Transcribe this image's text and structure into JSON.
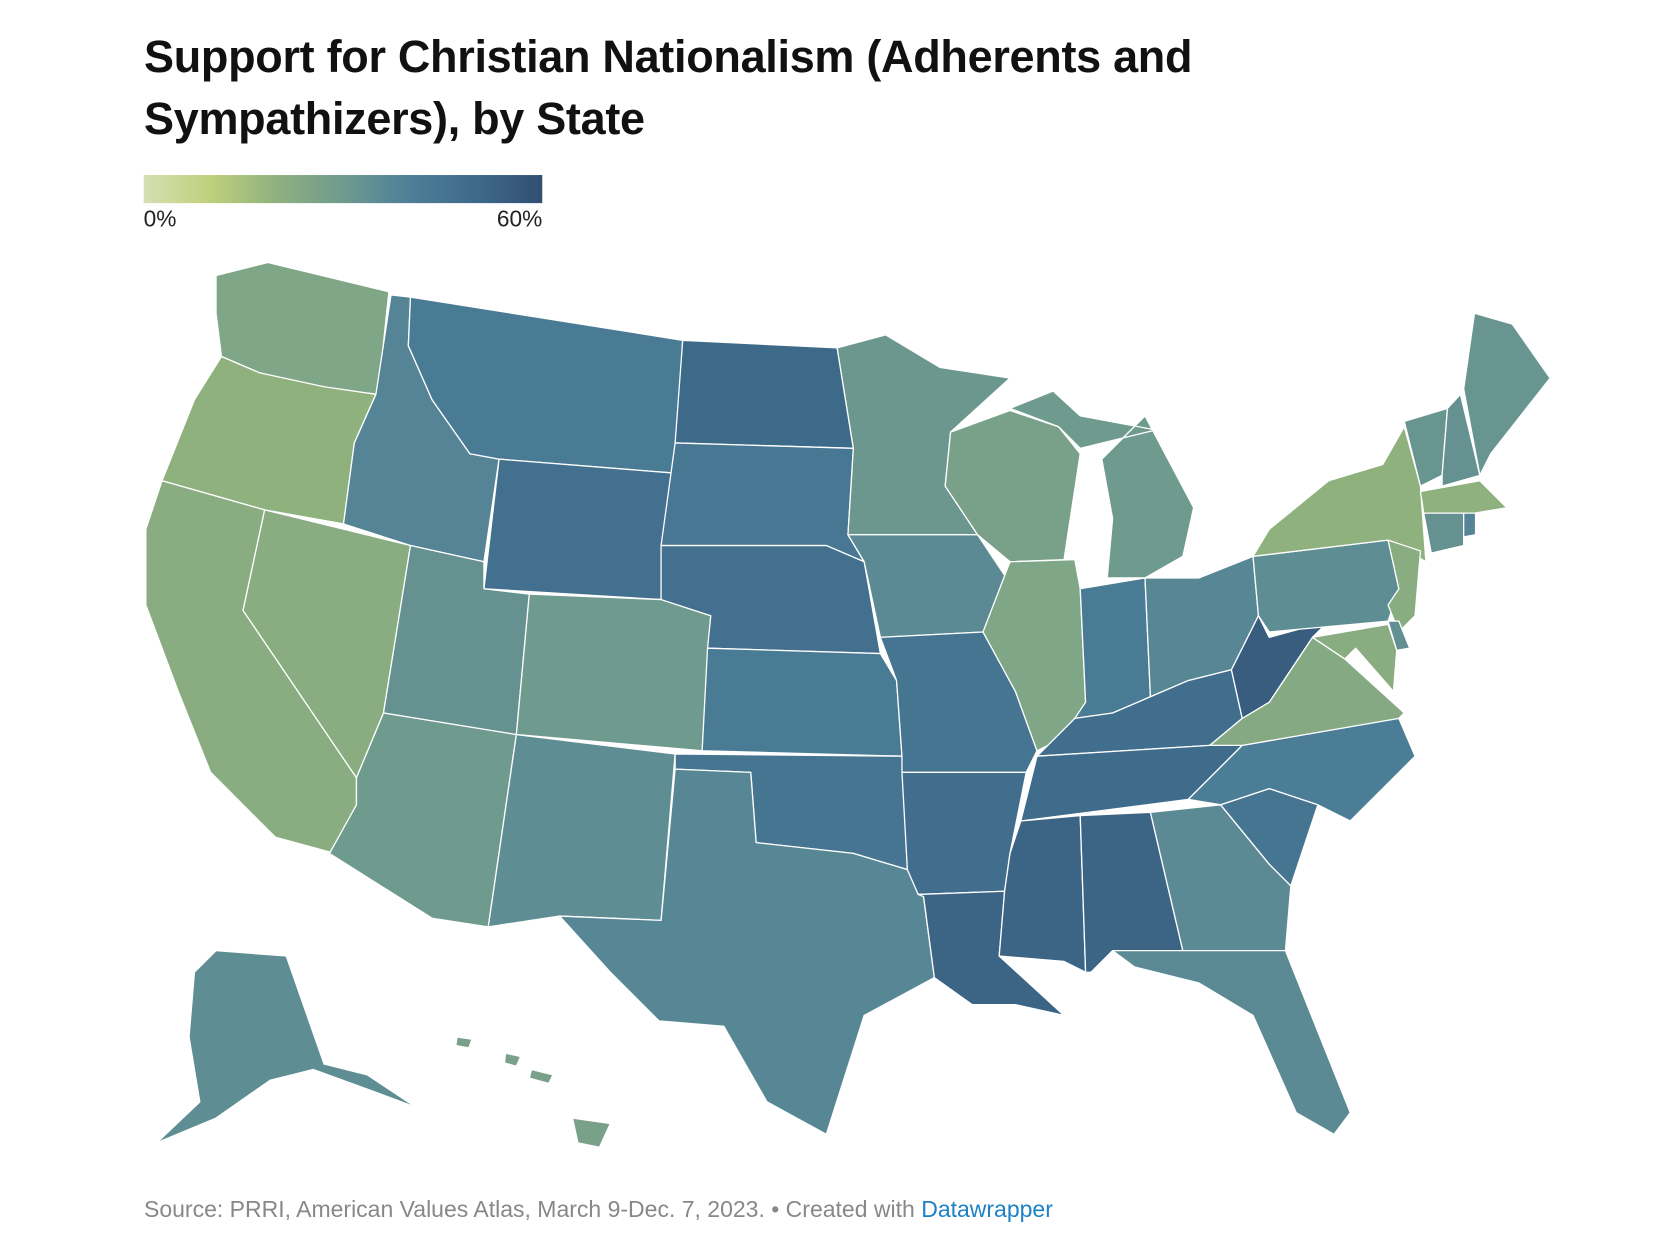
{
  "chart_data": {
    "type": "choropleth",
    "title": "Support for Christian Nationalism (Adherents and Sympathizers), by State",
    "source": "Source: PRRI, American Values Atlas, March 9-Dec. 7, 2023. • Created with",
    "credit": "Datawrapper",
    "colorscale": [
      "#d6dfb3",
      "#bfd07c",
      "#8fb17e",
      "#6f9a8e",
      "#4d7f98",
      "#3e6a8a",
      "#324f72"
    ],
    "clim": [
      0,
      60
    ],
    "legend_ticks": [
      {
        "value": 0,
        "label": "0%"
      },
      {
        "value": 60,
        "label": "60%"
      }
    ],
    "values": [
      25,
      20,
      22,
      22,
      38,
      42,
      47,
      33,
      30,
      30,
      35,
      50,
      44,
      47,
      42,
      45,
      37,
      31,
      36,
      45,
      48,
      52,
      27,
      25,
      30,
      42,
      37,
      48,
      49,
      52,
      52,
      36,
      36,
      45,
      41,
      23,
      55,
      35,
      20,
      32,
      33,
      32,
      20,
      33,
      38,
      22,
      34,
      22,
      35,
      27
    ]
  }
}
